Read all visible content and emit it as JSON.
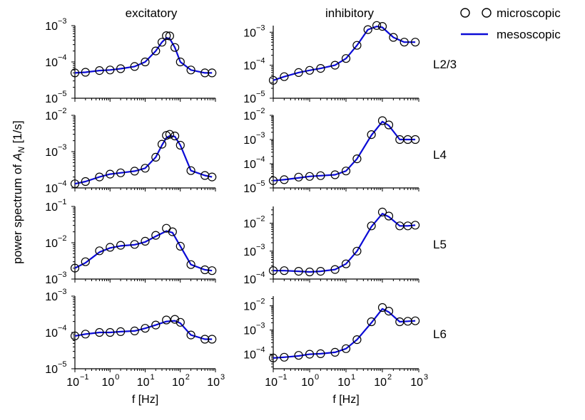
{
  "figure": {
    "column_titles": [
      "excitatory",
      "inhibitory"
    ],
    "row_labels": [
      "L2/3",
      "L4",
      "L5",
      "L6"
    ],
    "ylabel_prefix": "power spectrum of ",
    "ylabel_var": "A",
    "ylabel_sub": "N",
    "ylabel_suffix": " [1/s]",
    "legend": {
      "micro": "microscopic",
      "meso": "mesoscopic",
      "micro_color": "#000000",
      "meso_color": "#0b0bd6"
    }
  },
  "chart_data": [
    {
      "type": "line",
      "panel": "excitatory L2/3",
      "x_scale": "log",
      "y_scale": "log",
      "xlim": [
        0.1,
        1000
      ],
      "ylim_exp": [
        -5,
        -3
      ],
      "xtick_exp": [
        -1,
        0,
        1,
        2,
        3
      ],
      "ytick_exp": [
        -5,
        -4,
        -3
      ],
      "xlabel": "",
      "x": [
        0.1,
        0.2,
        0.5,
        1,
        2,
        5,
        10,
        20,
        30,
        40,
        50,
        70,
        100,
        200,
        500,
        800
      ],
      "microscopic": [
        5e-05,
        5.2e-05,
        5.8e-05,
        6e-05,
        6.5e-05,
        7.5e-05,
        0.0001,
        0.0002,
        0.00035,
        0.00053,
        0.00052,
        0.00025,
        0.0001,
        6e-05,
        5e-05,
        5e-05
      ],
      "mesoscopic": [
        5e-05,
        5.2e-05,
        5.8e-05,
        6e-05,
        6.5e-05,
        7.5e-05,
        0.0001,
        0.0002,
        0.00035,
        0.00046,
        0.00044,
        0.00025,
        0.0001,
        6e-05,
        5e-05,
        5e-05
      ]
    },
    {
      "type": "line",
      "panel": "inhibitory L2/3",
      "x_scale": "log",
      "y_scale": "log",
      "xlim": [
        0.1,
        1000
      ],
      "ylim_exp": [
        -5,
        -2.8
      ],
      "xtick_exp": [
        -1,
        0,
        1,
        2,
        3
      ],
      "ytick_exp": [
        -5,
        -4,
        -3
      ],
      "xlabel": "",
      "x": [
        0.1,
        0.2,
        0.5,
        1,
        2,
        5,
        10,
        20,
        40,
        70,
        100,
        200,
        400,
        800
      ],
      "microscopic": [
        3.5e-05,
        4.5e-05,
        6e-05,
        7e-05,
        8e-05,
        0.0001,
        0.00016,
        0.0004,
        0.0012,
        0.0016,
        0.0015,
        0.0007,
        0.0005,
        0.0005
      ],
      "mesoscopic": [
        3.5e-05,
        4.5e-05,
        6e-05,
        7e-05,
        8e-05,
        0.0001,
        0.00016,
        0.0004,
        0.0012,
        0.0015,
        0.0014,
        0.0007,
        0.0005,
        0.0005
      ]
    },
    {
      "type": "line",
      "panel": "excitatory L4",
      "x_scale": "log",
      "y_scale": "log",
      "xlim": [
        0.1,
        1000
      ],
      "ylim_exp": [
        -4,
        -2
      ],
      "xtick_exp": [
        -1,
        0,
        1,
        2,
        3
      ],
      "ytick_exp": [
        -4,
        -3,
        -2
      ],
      "xlabel": "",
      "x": [
        0.1,
        0.2,
        0.5,
        1,
        2,
        5,
        10,
        20,
        30,
        40,
        50,
        70,
        100,
        200,
        500,
        800
      ],
      "microscopic": [
        0.00013,
        0.00015,
        0.0002,
        0.00024,
        0.00026,
        0.00029,
        0.00035,
        0.0007,
        0.0016,
        0.0028,
        0.003,
        0.0027,
        0.0015,
        0.0003,
        0.00022,
        0.0002
      ],
      "mesoscopic": [
        0.00013,
        0.00015,
        0.0002,
        0.00024,
        0.00026,
        0.00029,
        0.00035,
        0.0007,
        0.0015,
        0.0024,
        0.0027,
        0.0026,
        0.0015,
        0.0003,
        0.00022,
        0.0002
      ]
    },
    {
      "type": "line",
      "panel": "inhibitory L4",
      "x_scale": "log",
      "y_scale": "log",
      "xlim": [
        0.1,
        1000
      ],
      "ylim_exp": [
        -5,
        -2
      ],
      "xtick_exp": [
        -1,
        0,
        1,
        2,
        3
      ],
      "ytick_exp": [
        -5,
        -4,
        -3,
        -2
      ],
      "xlabel": "",
      "x": [
        0.1,
        0.2,
        0.5,
        1,
        2,
        5,
        10,
        20,
        50,
        100,
        150,
        300,
        500,
        800
      ],
      "microscopic": [
        2e-05,
        2.2e-05,
        2.8e-05,
        3e-05,
        3.2e-05,
        3.5e-05,
        5e-05,
        0.00016,
        0.0016,
        0.006,
        0.004,
        0.001,
        0.001,
        0.001
      ],
      "mesoscopic": [
        2e-05,
        2.2e-05,
        2.6e-05,
        3e-05,
        3.2e-05,
        3.5e-05,
        5e-05,
        0.00016,
        0.0015,
        0.0055,
        0.0038,
        0.001,
        0.001,
        0.001
      ]
    },
    {
      "type": "line",
      "panel": "excitatory L5",
      "x_scale": "log",
      "y_scale": "log",
      "xlim": [
        0.1,
        1000
      ],
      "ylim_exp": [
        -3,
        -1
      ],
      "xtick_exp": [
        -1,
        0,
        1,
        2,
        3
      ],
      "ytick_exp": [
        -3,
        -2,
        -1
      ],
      "xlabel": "",
      "x": [
        0.1,
        0.2,
        0.5,
        1,
        2,
        5,
        10,
        20,
        40,
        60,
        100,
        200,
        500,
        800
      ],
      "microscopic": [
        0.002,
        0.003,
        0.006,
        0.0075,
        0.0085,
        0.009,
        0.011,
        0.016,
        0.025,
        0.02,
        0.008,
        0.0025,
        0.0018,
        0.0017
      ],
      "mesoscopic": [
        0.002,
        0.0028,
        0.0055,
        0.0072,
        0.0082,
        0.0088,
        0.0105,
        0.015,
        0.021,
        0.019,
        0.008,
        0.0025,
        0.0018,
        0.0017
      ]
    },
    {
      "type": "line",
      "panel": "inhibitory L5",
      "x_scale": "log",
      "y_scale": "log",
      "xlim": [
        0.1,
        1000
      ],
      "ylim_exp": [
        -4,
        -1.4
      ],
      "xtick_exp": [
        -1,
        0,
        1,
        2,
        3
      ],
      "ytick_exp": [
        -4,
        -3,
        -2
      ],
      "xlabel": "",
      "x": [
        0.1,
        0.2,
        0.5,
        1,
        2,
        5,
        10,
        20,
        50,
        100,
        150,
        300,
        500,
        800
      ],
      "microscopic": [
        0.0002,
        0.0002,
        0.00019,
        0.00018,
        0.00019,
        0.00022,
        0.00035,
        0.001,
        0.008,
        0.025,
        0.018,
        0.008,
        0.008,
        0.0085
      ],
      "mesoscopic": [
        0.0002,
        0.0002,
        0.00019,
        0.00018,
        0.00019,
        0.00022,
        0.00035,
        0.001,
        0.0075,
        0.022,
        0.017,
        0.008,
        0.008,
        0.0085
      ]
    },
    {
      "type": "line",
      "panel": "excitatory L6",
      "x_scale": "log",
      "y_scale": "log",
      "xlim": [
        0.1,
        1000
      ],
      "ylim_exp": [
        -5,
        -3
      ],
      "xtick_exp": [
        -1,
        0,
        1,
        2,
        3
      ],
      "ytick_exp": [
        -5,
        -4,
        -3
      ],
      "xlabel": "f [Hz]",
      "x": [
        0.1,
        0.2,
        0.5,
        1,
        2,
        5,
        10,
        20,
        40,
        70,
        100,
        200,
        500,
        800
      ],
      "microscopic": [
        8e-05,
        9e-05,
        0.0001,
        0.0001,
        0.000105,
        0.00011,
        0.00013,
        0.00016,
        0.00022,
        0.00023,
        0.00019,
        8.5e-05,
        6.5e-05,
        6.5e-05
      ],
      "mesoscopic": [
        8e-05,
        9e-05,
        0.0001,
        0.0001,
        0.000105,
        0.00011,
        0.00013,
        0.00016,
        0.0002,
        0.00021,
        0.00018,
        8.5e-05,
        6.5e-05,
        6.5e-05
      ]
    },
    {
      "type": "line",
      "panel": "inhibitory L6",
      "x_scale": "log",
      "y_scale": "log",
      "xlim": [
        0.1,
        1000
      ],
      "ylim_exp": [
        -4.6,
        -1.6
      ],
      "xtick_exp": [
        -1,
        0,
        1,
        2,
        3
      ],
      "ytick_exp": [
        -4,
        -3,
        -2
      ],
      "xlabel": "f [Hz]",
      "x": [
        0.1,
        0.2,
        0.5,
        1,
        2,
        5,
        10,
        20,
        50,
        100,
        150,
        300,
        500,
        800
      ],
      "microscopic": [
        7e-05,
        7.5e-05,
        9e-05,
        0.0001,
        0.000105,
        0.00012,
        0.00017,
        0.0004,
        0.0022,
        0.0085,
        0.006,
        0.0022,
        0.0023,
        0.0024
      ],
      "mesoscopic": [
        7e-05,
        7.5e-05,
        8.5e-05,
        0.0001,
        0.000105,
        0.00012,
        0.00017,
        0.0004,
        0.002,
        0.0075,
        0.0055,
        0.0022,
        0.0023,
        0.0024
      ]
    }
  ]
}
